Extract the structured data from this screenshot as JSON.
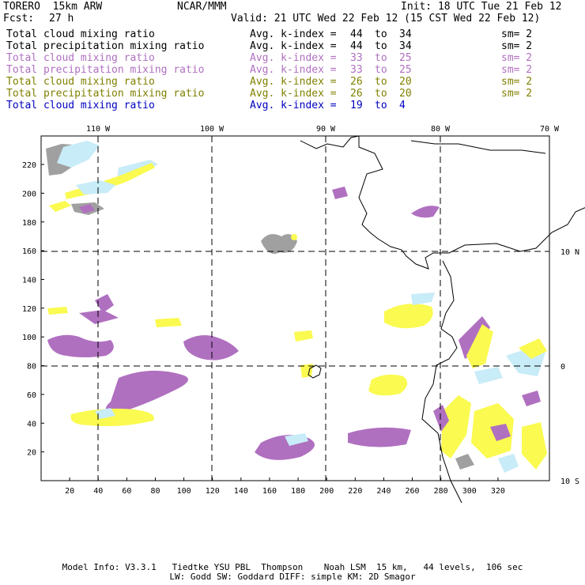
{
  "header": {
    "model": "TORERO  15km ARW",
    "org": "NCAR/MMM",
    "init": "Init: 18 UTC Tue 21 Feb 12",
    "fcst_label": "Fcst:",
    "fcst_value": "27 h",
    "valid": "Valid: 21 UTC Wed 22 Feb 12 (15 CST Wed 22 Feb 12)"
  },
  "legend": [
    {
      "name": "Total cloud mixing ratio",
      "idx": "Avg. k-index =",
      "from": "44",
      "to_word": "to",
      "to": "34",
      "sm": "sm= 2",
      "color": "#000000"
    },
    {
      "name": "Total precipitation mixing ratio",
      "idx": "Avg. k-index =",
      "from": "44",
      "to_word": "to",
      "to": "34",
      "sm": "sm= 2",
      "color": "#000000"
    },
    {
      "name": "Total cloud mixing ratio",
      "idx": "Avg. k-index =",
      "from": "33",
      "to_word": "to",
      "to": "25",
      "sm": "sm= 2",
      "color": "#b070c0"
    },
    {
      "name": "Total precipitation mixing ratio",
      "idx": "Avg. k-index =",
      "from": "33",
      "to_word": "to",
      "to": "25",
      "sm": "sm= 2",
      "color": "#b070c0"
    },
    {
      "name": "Total cloud mixing ratio",
      "idx": "Avg. k-index =",
      "from": "26",
      "to_word": "to",
      "to": "20",
      "sm": "sm= 2",
      "color": "#808000"
    },
    {
      "name": "Total precipitation mixing ratio",
      "idx": "Avg. k-index =",
      "from": "26",
      "to_word": "to",
      "to": "20",
      "sm": "sm= 2",
      "color": "#808000"
    },
    {
      "name": "Total cloud mixing ratio",
      "idx": "Avg. k-index =",
      "from": "19",
      "to_word": "to",
      "to": "4",
      "sm": "",
      "color": "#0000c0"
    }
  ],
  "axes": {
    "top_lon": [
      "110 W",
      "100 W",
      "90 W",
      "80 W",
      "70 W"
    ],
    "right_lat": [
      "10 N",
      "0",
      "10 S"
    ],
    "x_ticks": [
      "20",
      "40",
      "60",
      "80",
      "100",
      "120",
      "140",
      "160",
      "180",
      "200",
      "220",
      "240",
      "260",
      "280",
      "300",
      "320"
    ],
    "y_ticks": [
      "220",
      "200",
      "180",
      "160",
      "140",
      "120",
      "100",
      "80",
      "60",
      "40",
      "20"
    ]
  },
  "colors": {
    "grey": "#a0a0a0",
    "lightblue": "#c8ecf8",
    "purple": "#b070c0",
    "yellow": "#fafa50"
  },
  "footer": {
    "line1": "Model Info: V3.3.1   Tiedtke YSU PBL  Thompson    Noah LSM  15 km,   44 levels,  106 sec",
    "line2": "LW: Godd SW: Goddard DIFF: simple KM: 2D Smagor"
  }
}
